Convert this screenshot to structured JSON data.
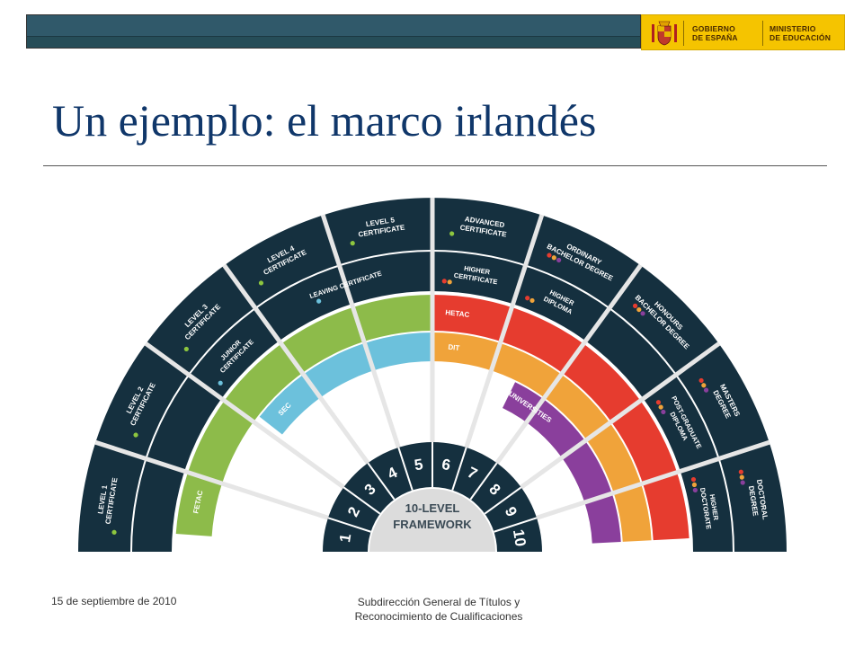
{
  "logo": {
    "line1": "GOBIERNO",
    "line2": "DE ESPAÑA",
    "line3": "MINISTERIO",
    "line4": "DE EDUCACIÓN"
  },
  "title": "Un ejemplo: el marco irlandés",
  "framework": {
    "center_line1": "10-LEVEL",
    "center_line2": "FRAMEWORK",
    "levels": [
      "1",
      "2",
      "3",
      "4",
      "5",
      "6",
      "7",
      "8",
      "9",
      "10"
    ],
    "awards": [
      {
        "lines": [
          "LEVEL 1",
          "CERTIFICATE"
        ],
        "dots": [
          "#8dc63f"
        ]
      },
      {
        "lines": [
          "LEVEL 2",
          "CERTIFICATE"
        ],
        "dots": [
          "#8dc63f"
        ]
      },
      {
        "lines": [
          "LEVEL 3",
          "CERTIFICATE"
        ],
        "dots": [
          "#8dc63f"
        ]
      },
      {
        "lines": [
          "LEVEL 4",
          "CERTIFICATE"
        ],
        "dots": [
          "#8dc63f"
        ]
      },
      {
        "lines": [
          "LEVEL 5",
          "CERTIFICATE"
        ],
        "dots": [
          "#8dc63f"
        ]
      },
      {
        "lines": [
          "ADVANCED",
          "CERTIFICATE"
        ],
        "dots": [
          "#8dc63f"
        ]
      },
      {
        "lines": [
          "ORDINARY",
          "BACHELOR DEGREE"
        ],
        "dots": [
          "#e63c2f",
          "#f0a33a",
          "#8a3f9c"
        ]
      },
      {
        "lines": [
          "HONOURS",
          "BACHELOR DEGREE"
        ],
        "dots": [
          "#e63c2f",
          "#f0a33a",
          "#8a3f9c"
        ]
      },
      {
        "lines": [
          "MASTERS",
          "DEGREE"
        ],
        "dots": [
          "#e63c2f",
          "#f0a33a",
          "#8a3f9c"
        ]
      },
      {
        "lines": [
          "DOCTORAL",
          "DEGREE"
        ],
        "dots": [
          "#e63c2f",
          "#f0a33a",
          "#8a3f9c"
        ]
      }
    ],
    "inner_awards": [
      {
        "lines": [
          "JUNIOR",
          "CERTIFICATE"
        ],
        "dots": [
          "#6cc1dc"
        ]
      },
      {
        "lines": [
          "LEAVING CERTIFICATE"
        ],
        "dots": [
          "#6cc1dc"
        ]
      },
      {
        "lines": [
          "HIGHER",
          "CERTIFICATE"
        ],
        "dots": [
          "#e63c2f",
          "#f0a33a"
        ]
      },
      {
        "lines": [
          "HIGHER",
          "DIPLOMA"
        ],
        "dots": [
          "#e63c2f",
          "#f0a33a"
        ]
      },
      {
        "lines": [
          "POST-GRADUATE",
          "DIPLOMA"
        ],
        "dots": [
          "#e63c2f",
          "#f0a33a",
          "#8a3f9c"
        ]
      },
      {
        "lines": [
          "HIGHER",
          "DOCTORATE"
        ],
        "dots": [
          "#e63c2f",
          "#f0a33a",
          "#8a3f9c"
        ]
      }
    ],
    "bodies": [
      {
        "label": "FETAC",
        "color": "#8dbb4a"
      },
      {
        "label": "SEC",
        "color": "#6cc1dc"
      },
      {
        "label": "HETAC",
        "color": "#e63c2f"
      },
      {
        "label": "DIT",
        "color": "#f0a33a"
      },
      {
        "label": "UNIVERSITIES",
        "color": "#8a3f9c"
      }
    ],
    "colors": {
      "navy": "#15303f",
      "center": "#dcdcdc",
      "spoke": "#e6e6e6"
    }
  },
  "footer": {
    "date": "15 de septiembre de 2010",
    "dept_line1": "Subdirección General de Títulos y",
    "dept_line2": "Reconocimiento de Cualificaciones"
  }
}
